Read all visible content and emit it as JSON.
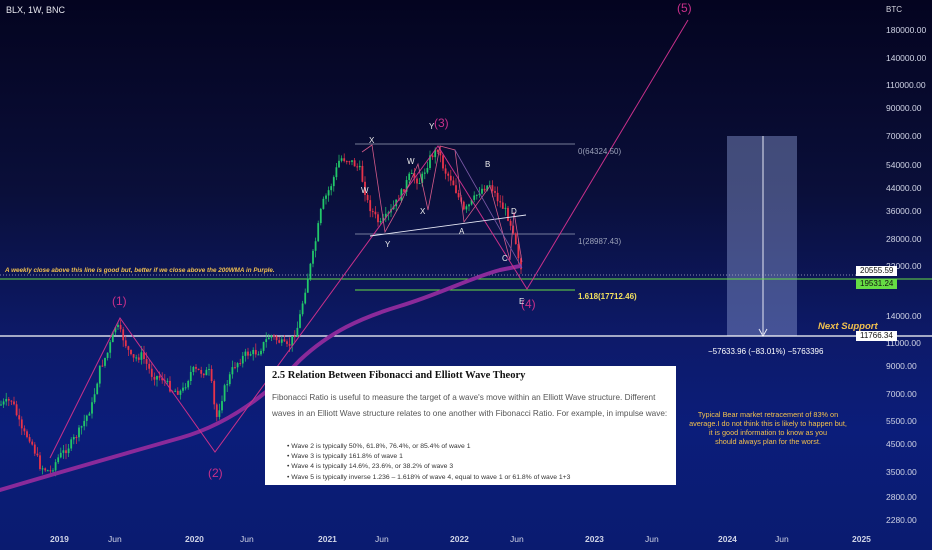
{
  "header": {
    "symbol_line": "BLX, 1W, BNC",
    "currency": "BTC"
  },
  "chart_data": {
    "type": "candlestick",
    "title": "BLX, 1W, BNC",
    "yscale": "log",
    "ylabel": "BTC",
    "yticks": [
      "180000.00",
      "140000.00",
      "110000.00",
      "90000.00",
      "70000.00",
      "54000.00",
      "44000.00",
      "36000.00",
      "28000.00",
      "22000.00",
      "14000.00",
      "11000.00",
      "9000.00",
      "7000.00",
      "5500.00",
      "4500.00",
      "3500.00",
      "2800.00",
      "2280.00"
    ],
    "xticks": [
      {
        "label": "2019",
        "bold": true
      },
      {
        "label": "Jun",
        "bold": false
      },
      {
        "label": "2020",
        "bold": true
      },
      {
        "label": "Jun",
        "bold": false
      },
      {
        "label": "2021",
        "bold": true
      },
      {
        "label": "Jun",
        "bold": false
      },
      {
        "label": "2022",
        "bold": true
      },
      {
        "label": "Jun",
        "bold": false
      },
      {
        "label": "2023",
        "bold": true
      },
      {
        "label": "Jun",
        "bold": false
      },
      {
        "label": "2024",
        "bold": true
      },
      {
        "label": "Jun",
        "bold": false
      },
      {
        "label": "2025",
        "bold": true
      }
    ],
    "price_tags": [
      {
        "text": "20555.59",
        "bg": "#ffffff",
        "color": "#111111"
      },
      {
        "text": "19531.24",
        "bg": "#66dd44",
        "color": "#111111"
      },
      {
        "text": "11766.34",
        "bg": "#ffffff",
        "color": "#111111"
      }
    ],
    "wave_labels": {
      "w1": "(1)",
      "w2": "(2)",
      "w3": "(3)",
      "w4": "(4)",
      "w5": "(5)",
      "X": "X",
      "Y_top": "Y",
      "W1": "W",
      "W2": "W",
      "X2": "X",
      "Y2": "Y",
      "A": "A",
      "B": "B",
      "C": "C",
      "D": "D",
      "E": "E"
    },
    "fib_labels": [
      "0(64324.50)",
      "1(28987.43)",
      "1.618(17712.46)"
    ],
    "support_text": "Next Support",
    "projection_text": "−57633.96 (−83.01%) −5763396",
    "weekly_note": "A weekly close above this line is good but, better if we close above the 200WMA in Purple.",
    "bear_note": [
      "Typical Bear market retracement of 83% on",
      "average.I do not think this is likely to happen but,",
      "it is good information to know as you",
      "should always  plan for the worst."
    ],
    "colors": {
      "up": "#22c86a",
      "down": "#e8334a",
      "ma200": "#8a2a9a",
      "wave": "#c8308a",
      "fib": "#9aa0b8",
      "green_line": "#66dd44",
      "support_line": "#ffffff",
      "note": "#f2c04e"
    },
    "ma200_color_name": "Purple"
  },
  "infobox": {
    "title": "2.5 Relation Between Fibonacci and Elliott Wave Theory",
    "paragraph": "Fibonacci Ratio is useful to measure the target of a wave's move within an Elliott Wave structure. Different waves in an Elliott Wave structure relates to one another with Fibonacci Ratio. For example, in impulse wave:",
    "bullets": [
      "Wave 2 is typically 50%, 61.8%, 76.4%, or 85.4% of wave 1",
      "Wave 3 is typically 161.8% of wave 1",
      "Wave 4 is typically 14.6%, 23.6%, or 38.2% of wave 3",
      "Wave 5 is typically inverse 1.236 – 1.618% of wave 4, equal to wave 1 or 61.8% of wave 1+3"
    ]
  }
}
